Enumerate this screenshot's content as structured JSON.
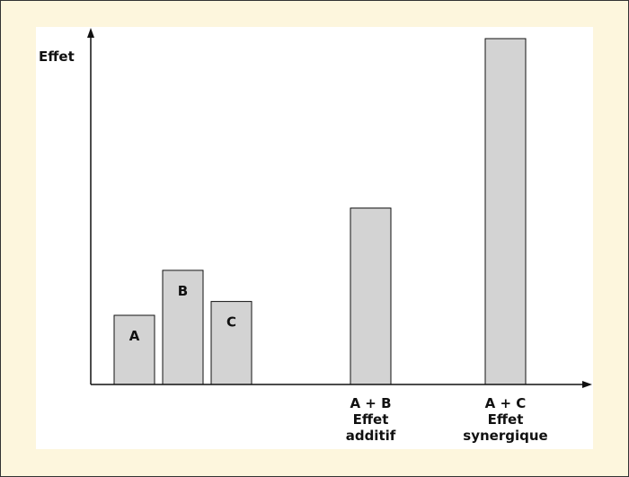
{
  "colors": {
    "page_background": "#fdf6dd",
    "panel_background": "#ffffff",
    "bar_fill": "#d3d3d3",
    "bar_stroke": "#111111",
    "axis": "#111111"
  },
  "chart_data": {
    "type": "bar",
    "ylabel": "Effet",
    "xlabel": "",
    "title": "",
    "ylim": [
      0,
      100
    ],
    "grid": false,
    "legend": "none",
    "bars": [
      {
        "label": "A",
        "label_position": "inside",
        "value": 20
      },
      {
        "label": "B",
        "label_position": "inside",
        "value": 33
      },
      {
        "label": "C",
        "label_position": "inside",
        "value": 24
      },
      {
        "lines": [
          "A + B",
          "Effet",
          "additif"
        ],
        "label_position": "below",
        "value": 51
      },
      {
        "lines": [
          "A + C",
          "Effet",
          "synergique"
        ],
        "label_position": "below",
        "value": 100
      }
    ]
  }
}
